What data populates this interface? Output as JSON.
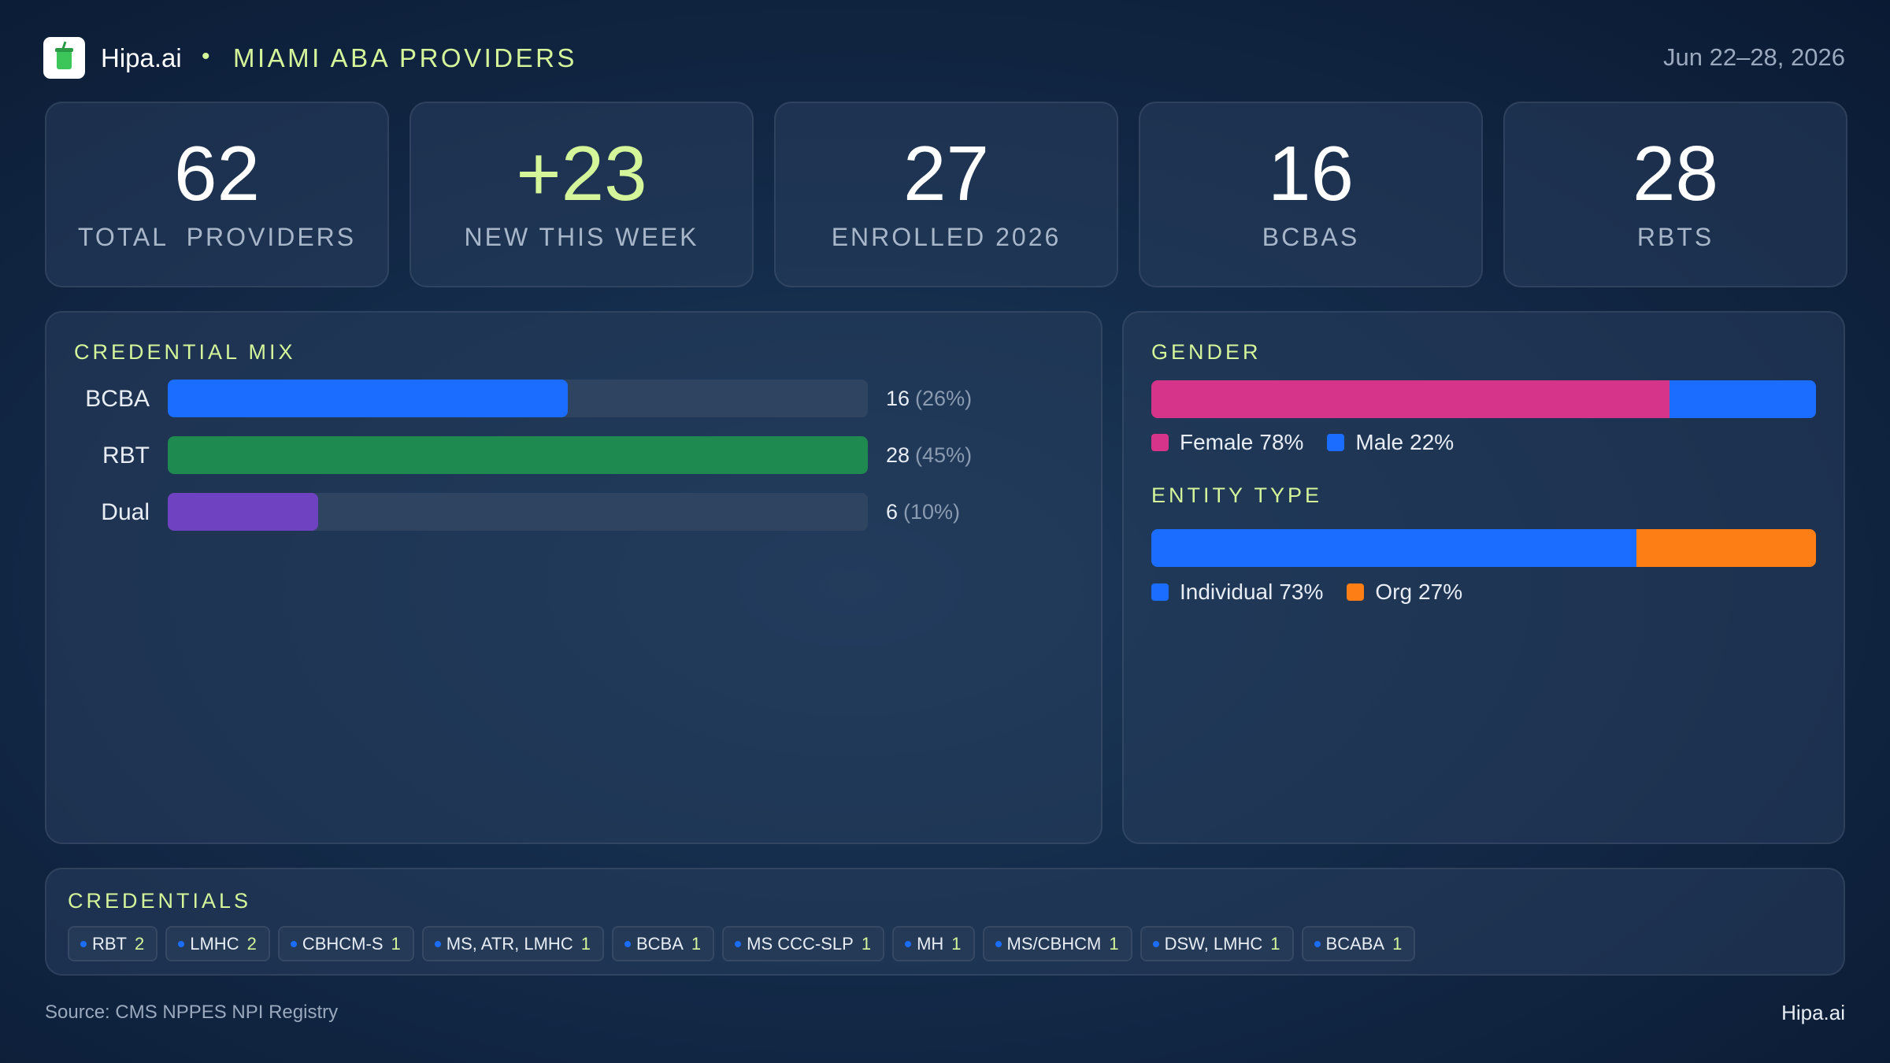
{
  "header": {
    "brand": "Hipa.ai",
    "separator": "•",
    "title": "MIAMI ABA PROVIDERS",
    "date": "Jun 22–28, 2026"
  },
  "kpis": [
    {
      "value": "62",
      "label": "TOTAL  PROVIDERS",
      "color": "#ffffff"
    },
    {
      "value": "+23",
      "label": "NEW THIS WEEK",
      "color": "#d4f59a"
    },
    {
      "value": "27",
      "label": "ENROLLED 2026",
      "color": "#ffffff"
    },
    {
      "value": "16",
      "label": "BCBAS",
      "color": "#ffffff"
    },
    {
      "value": "28",
      "label": "RBTS",
      "color": "#ffffff"
    }
  ],
  "credential_mix": {
    "title": "CREDENTIAL MIX",
    "categories": [
      "BCBA",
      "RBT",
      "Dual"
    ],
    "values": [
      16,
      28,
      6
    ],
    "shares": [
      "(26%)",
      "(45%)",
      "(10%)"
    ],
    "colors": [
      "#1a6dff",
      "#1e8a50",
      "#6f42c1"
    ]
  },
  "gender": {
    "title": "GENDER",
    "series": [
      {
        "name": "Female",
        "value": 78,
        "value_label": "78%",
        "color": "#d6338a"
      },
      {
        "name": "Male",
        "value": 22,
        "value_label": "22%",
        "color": "#1a6dff"
      }
    ]
  },
  "entity_type": {
    "title": "ENTITY TYPE",
    "series": [
      {
        "name": "Individual",
        "value": 73,
        "value_label": "73%",
        "color": "#1a6dff"
      },
      {
        "name": "Org",
        "value": 27,
        "value_label": "27%",
        "color": "#fd7e14"
      }
    ]
  },
  "credentials": {
    "title": "CREDENTIALS",
    "items": [
      {
        "name": "RBT",
        "count": 2
      },
      {
        "name": "LMHC",
        "count": 2
      },
      {
        "name": "CBHCM-S",
        "count": 1
      },
      {
        "name": "MS, ATR, LMHC",
        "count": 1
      },
      {
        "name": "BCBA",
        "count": 1
      },
      {
        "name": "MS CCC-SLP",
        "count": 1
      },
      {
        "name": "MH",
        "count": 1
      },
      {
        "name": "MS/CBHCM",
        "count": 1
      },
      {
        "name": "DSW, LMHC",
        "count": 1
      },
      {
        "name": "BCABA",
        "count": 1
      }
    ]
  },
  "footer": {
    "source": "Source: CMS NPPES NPI Registry",
    "brand": "Hipa.ai"
  }
}
